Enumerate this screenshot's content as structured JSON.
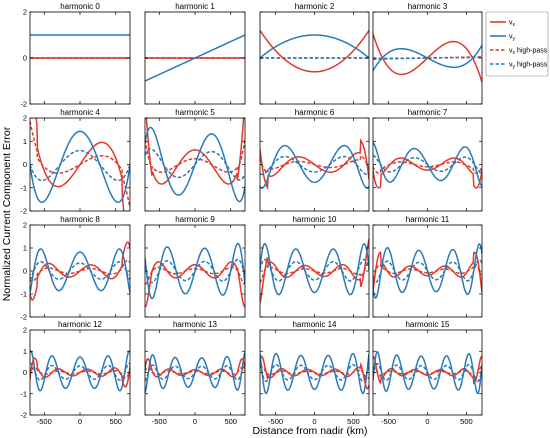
{
  "figure": {
    "xlabel": "Distance from nadir (km)",
    "ylabel": "Normalized Current Component Error"
  },
  "colors": {
    "vx": "#e03a2b",
    "vy": "#2a7ab8"
  },
  "legend": {
    "placement": "right of top-right panel",
    "entries": [
      {
        "label": "vx",
        "base": "v",
        "sub": "x",
        "suffix": "",
        "series": "vx",
        "style": "solid"
      },
      {
        "label": "vy",
        "base": "v",
        "sub": "y",
        "suffix": "",
        "series": "vy",
        "style": "solid"
      },
      {
        "label": "vx high-pass",
        "base": "v",
        "sub": "x",
        "suffix": " high-pass",
        "series": "vx",
        "style": "dashed"
      },
      {
        "label": "vy high-pass",
        "base": "v",
        "sub": "y",
        "suffix": " high-pass",
        "series": "vy",
        "style": "dashed"
      }
    ]
  },
  "axes": {
    "xlim": [
      -700,
      700
    ],
    "xticks": [
      -500,
      0,
      500
    ],
    "xticklabels": [
      "-500",
      "0",
      "500"
    ],
    "ylim_row1": [
      -2,
      2
    ],
    "yticks_row1": [
      -2,
      0,
      2
    ],
    "yticklabels_row1": [
      "-2",
      "0",
      "2"
    ],
    "ylim_other_rows": [
      -2,
      2
    ],
    "yticks_other_rows": [
      -2,
      -1,
      0,
      1,
      2
    ],
    "yticklabels_other_rows": [
      "-2",
      "-1",
      "0",
      "1",
      "2"
    ],
    "grid": false
  },
  "chart_data": {
    "type": "line",
    "layout": "4x4 panel grid",
    "xlabel": "Distance from nadir (km)",
    "ylabel": "Normalized Current Component Error",
    "panels": [
      {
        "title": "harmonic 0",
        "harmonic": 0
      },
      {
        "title": "harmonic 1",
        "harmonic": 1
      },
      {
        "title": "harmonic 2",
        "harmonic": 2
      },
      {
        "title": "harmonic 3",
        "harmonic": 3
      },
      {
        "title": "harmonic 4",
        "harmonic": 4
      },
      {
        "title": "harmonic 5",
        "harmonic": 5
      },
      {
        "title": "harmonic 6",
        "harmonic": 6
      },
      {
        "title": "harmonic 7",
        "harmonic": 7
      },
      {
        "title": "harmonic 8",
        "harmonic": 8
      },
      {
        "title": "harmonic 9",
        "harmonic": 9
      },
      {
        "title": "harmonic 10",
        "harmonic": 10
      },
      {
        "title": "harmonic 11",
        "harmonic": 11
      },
      {
        "title": "harmonic 12",
        "harmonic": 12
      },
      {
        "title": "harmonic 13",
        "harmonic": 13
      },
      {
        "title": "harmonic 14",
        "harmonic": 14
      },
      {
        "title": "harmonic 15",
        "harmonic": 15
      }
    ],
    "series": [
      {
        "name": "vx",
        "color": "#e03a2b",
        "style": "solid"
      },
      {
        "name": "vy",
        "color": "#2a7ab8",
        "style": "solid"
      },
      {
        "name": "vx high-pass",
        "color": "#e03a2b",
        "style": "dashed"
      },
      {
        "name": "vy high-pass",
        "color": "#2a7ab8",
        "style": "dashed"
      }
    ],
    "xlim": [
      -700,
      700
    ],
    "ylim": [
      -2,
      2
    ]
  }
}
